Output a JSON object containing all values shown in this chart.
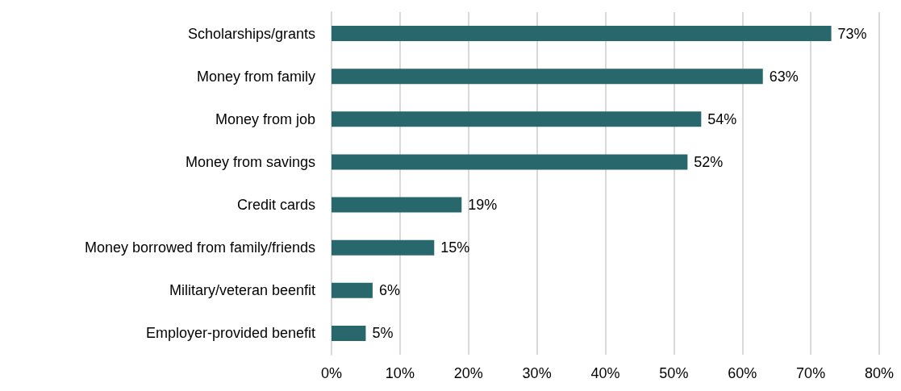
{
  "chart_data": {
    "type": "bar",
    "orientation": "horizontal",
    "categories": [
      "Scholarships/grants",
      "Money from family",
      "Money from job",
      "Money from savings",
      "Credit cards",
      "Money borrowed from family/friends",
      "Military/veteran beenfit",
      "Employer-provided benefit"
    ],
    "values": [
      73,
      63,
      54,
      52,
      19,
      15,
      6,
      5
    ],
    "value_labels": [
      "73%",
      "63%",
      "54%",
      "52%",
      "19%",
      "15%",
      "6%",
      "5%"
    ],
    "color": "#28686c",
    "xlim": [
      0,
      80
    ],
    "xticks": [
      {
        "value": 0,
        "label": "0%"
      },
      {
        "value": 10,
        "label": "10%"
      },
      {
        "value": 20,
        "label": "20%"
      },
      {
        "value": 30,
        "label": "30%"
      },
      {
        "value": 40,
        "label": "40%"
      },
      {
        "value": 50,
        "label": "50%"
      },
      {
        "value": 60,
        "label": "60%"
      },
      {
        "value": 70,
        "label": "70%"
      },
      {
        "value": 80,
        "label": "80%"
      }
    ],
    "grid": "x"
  }
}
